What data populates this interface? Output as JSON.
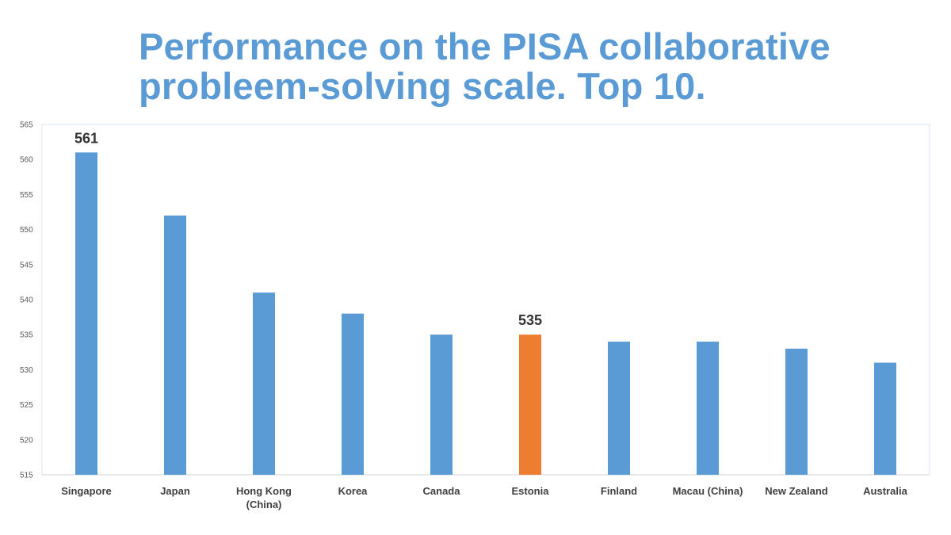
{
  "chart_data": {
    "type": "bar",
    "title": [
      "Performance on the PISA collaborative",
      "probleem-solving scale. Top 10."
    ],
    "xlabel": "",
    "ylabel": "",
    "ylim": [
      515,
      565
    ],
    "yticks": [
      515,
      520,
      525,
      530,
      535,
      540,
      545,
      550,
      555,
      560,
      565
    ],
    "grid": false,
    "legend": "none",
    "categories": [
      [
        "Singapore"
      ],
      [
        "Japan"
      ],
      [
        "Hong Kong",
        "(China)"
      ],
      [
        "Korea"
      ],
      [
        "Canada"
      ],
      [
        "Estonia"
      ],
      [
        "Finland"
      ],
      [
        "Macau (China)"
      ],
      [
        "New Zealand"
      ],
      [
        "Australia"
      ]
    ],
    "values": [
      561,
      552,
      541,
      538,
      535,
      535,
      534,
      534,
      533,
      531
    ],
    "colors": [
      "#5b9bd5",
      "#5b9bd5",
      "#5b9bd5",
      "#5b9bd5",
      "#5b9bd5",
      "#ed7d31",
      "#5b9bd5",
      "#5b9bd5",
      "#5b9bd5",
      "#5b9bd5"
    ],
    "data_labels": [
      {
        "category_index": 0,
        "text": "561"
      },
      {
        "category_index": 5,
        "text": "535"
      }
    ]
  }
}
